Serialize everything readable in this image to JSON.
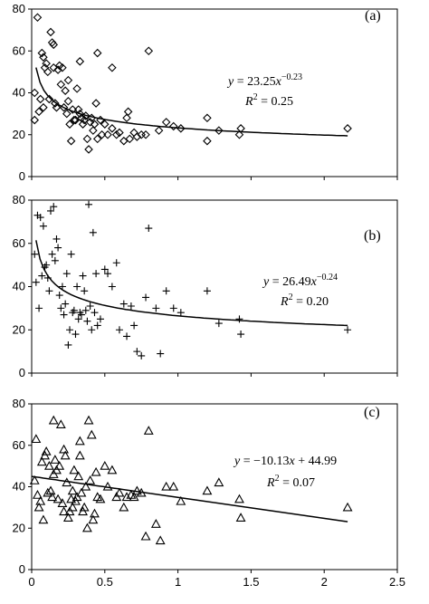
{
  "chart_data": [
    {
      "type": "scatter",
      "panel_label": "(a)",
      "marker": "diamond",
      "equation": {
        "lhs": "y",
        "eq": " = 23.25",
        "var": "x",
        "exp": "−0.23"
      },
      "r2": {
        "label": "R",
        "sup": "2",
        "value": " = 0.25"
      },
      "fit": {
        "model": "power",
        "a": 23.25,
        "b": -0.23,
        "x_start": 0.03,
        "x_end": 2.16
      },
      "xlim": [
        0,
        2.5
      ],
      "ylim": [
        0,
        80
      ],
      "yticks": [
        "0",
        "20",
        "40",
        "60",
        "80"
      ],
      "x": [
        0.02,
        0.02,
        0.04,
        0.05,
        0.06,
        0.07,
        0.08,
        0.08,
        0.09,
        0.1,
        0.11,
        0.12,
        0.13,
        0.14,
        0.15,
        0.16,
        0.17,
        0.18,
        0.19,
        0.2,
        0.21,
        0.22,
        0.23,
        0.24,
        0.25,
        0.26,
        0.27,
        0.28,
        0.29,
        0.3,
        0.31,
        0.32,
        0.33,
        0.34,
        0.35,
        0.36,
        0.37,
        0.38,
        0.39,
        0.4,
        0.41,
        0.42,
        0.43,
        0.44,
        0.45,
        0.47,
        0.48,
        0.5,
        0.52,
        0.55,
        0.58,
        0.6,
        0.63,
        0.65,
        0.67,
        0.7,
        0.72,
        0.75,
        0.78,
        0.8,
        0.87,
        0.92,
        0.97,
        1.02,
        1.2,
        1.2,
        1.28,
        1.42,
        1.43,
        2.16,
        0.15,
        0.25,
        0.33,
        0.45,
        0.55,
        0.66
      ],
      "y": [
        40,
        27,
        76,
        31,
        37,
        59,
        57,
        33,
        52,
        54,
        50,
        37,
        69,
        64,
        52,
        35,
        33,
        51,
        53,
        44,
        52,
        33,
        41,
        30,
        46,
        25,
        17,
        32,
        27,
        27,
        42,
        32,
        30,
        28,
        25,
        27,
        29,
        18,
        13,
        26,
        28,
        22,
        25,
        35,
        18,
        27,
        20,
        25,
        20,
        23,
        20,
        21,
        17,
        28,
        18,
        21,
        19,
        20,
        20,
        60,
        22,
        26,
        24,
        23,
        28,
        17,
        22,
        20,
        23,
        23,
        63,
        36,
        55,
        59,
        52,
        31
      ]
    },
    {
      "type": "scatter",
      "panel_label": "(b)",
      "marker": "plus",
      "equation": {
        "lhs": "y",
        "eq": " = 26.49",
        "var": "x",
        "exp": "−0.24"
      },
      "r2": {
        "label": "R",
        "sup": "2",
        "value": " = 0.20"
      },
      "fit": {
        "model": "power",
        "a": 26.49,
        "b": -0.24,
        "x_start": 0.03,
        "x_end": 2.16
      },
      "xlim": [
        0,
        2.5
      ],
      "ylim": [
        0,
        80
      ],
      "yticks": [
        "0",
        "20",
        "40",
        "60",
        "80"
      ],
      "x": [
        0.02,
        0.03,
        0.04,
        0.05,
        0.06,
        0.07,
        0.08,
        0.09,
        0.1,
        0.11,
        0.12,
        0.13,
        0.14,
        0.15,
        0.16,
        0.17,
        0.18,
        0.19,
        0.2,
        0.21,
        0.22,
        0.23,
        0.24,
        0.25,
        0.26,
        0.27,
        0.28,
        0.29,
        0.3,
        0.31,
        0.32,
        0.33,
        0.34,
        0.35,
        0.36,
        0.37,
        0.38,
        0.39,
        0.4,
        0.41,
        0.42,
        0.43,
        0.44,
        0.45,
        0.47,
        0.5,
        0.52,
        0.55,
        0.58,
        0.6,
        0.63,
        0.65,
        0.68,
        0.7,
        0.72,
        0.75,
        0.78,
        0.8,
        0.85,
        0.88,
        0.92,
        0.97,
        1.02,
        1.2,
        1.28,
        1.42,
        1.43,
        2.16
      ],
      "y": [
        55,
        42,
        73,
        30,
        72,
        45,
        68,
        49,
        50,
        44,
        38,
        75,
        55,
        77,
        52,
        62,
        58,
        36,
        30,
        40,
        27,
        32,
        46,
        13,
        20,
        55,
        28,
        29,
        18,
        40,
        25,
        28,
        27,
        45,
        38,
        29,
        24,
        78,
        31,
        20,
        65,
        28,
        46,
        22,
        25,
        48,
        46,
        40,
        51,
        20,
        32,
        17,
        31,
        22,
        10,
        8,
        35,
        67,
        30,
        9,
        38,
        30,
        28,
        38,
        23,
        25,
        18,
        20
      ]
    },
    {
      "type": "scatter",
      "panel_label": "(c)",
      "marker": "triangle",
      "equation": {
        "lhs": "y",
        "eq": " = −10.13",
        "var": "x",
        "exp": "",
        "tail": " + 44.99"
      },
      "r2": {
        "label": "R",
        "sup": "2",
        "value": " = 0.07"
      },
      "fit": {
        "model": "linear",
        "a": -10.13,
        "b": 44.99,
        "x_start": 0,
        "x_end": 2.16
      },
      "xlim": [
        0,
        2.5
      ],
      "ylim": [
        0,
        80
      ],
      "xticks": [
        "0",
        "0.5",
        "1",
        "1.5",
        "2",
        "2.5"
      ],
      "yticks": [
        "0",
        "20",
        "40",
        "60",
        "80"
      ],
      "x": [
        0.02,
        0.03,
        0.04,
        0.05,
        0.06,
        0.07,
        0.08,
        0.09,
        0.1,
        0.11,
        0.12,
        0.13,
        0.14,
        0.15,
        0.16,
        0.17,
        0.18,
        0.19,
        0.2,
        0.21,
        0.22,
        0.23,
        0.24,
        0.25,
        0.26,
        0.27,
        0.28,
        0.29,
        0.3,
        0.31,
        0.32,
        0.33,
        0.34,
        0.35,
        0.36,
        0.37,
        0.38,
        0.39,
        0.4,
        0.41,
        0.42,
        0.43,
        0.44,
        0.45,
        0.47,
        0.5,
        0.52,
        0.55,
        0.58,
        0.6,
        0.63,
        0.65,
        0.68,
        0.7,
        0.72,
        0.75,
        0.78,
        0.8,
        0.85,
        0.88,
        0.92,
        0.97,
        1.02,
        1.2,
        1.28,
        1.42,
        1.43,
        2.16,
        0.15,
        0.22,
        0.28,
        0.33
      ],
      "y": [
        43,
        63,
        36,
        30,
        33,
        52,
        24,
        55,
        57,
        37,
        50,
        38,
        35,
        72,
        53,
        48,
        34,
        50,
        70,
        32,
        28,
        55,
        42,
        25,
        28,
        34,
        30,
        48,
        33,
        35,
        45,
        55,
        37,
        28,
        30,
        40,
        20,
        72,
        43,
        65,
        24,
        27,
        47,
        35,
        34,
        50,
        40,
        48,
        35,
        37,
        30,
        35,
        36,
        35,
        38,
        37,
        16,
        67,
        22,
        14,
        40,
        40,
        33,
        38,
        42,
        34,
        25,
        30,
        46,
        58,
        38,
        62
      ]
    }
  ]
}
